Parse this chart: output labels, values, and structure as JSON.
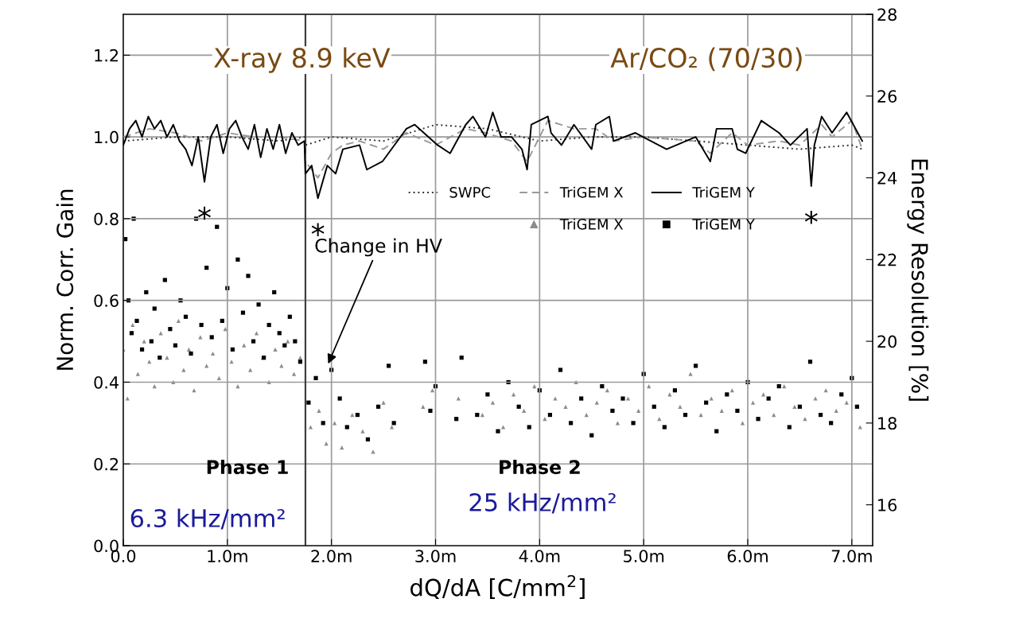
{
  "chart_data": {
    "type": "line",
    "xlabel": "dQ/dA [C/mm$^{2}$]",
    "ylabel": "Norm. Corr. Gain",
    "y2label": "Energy Resolution [%]",
    "xlim": [
      0,
      7.2
    ],
    "xticks": [
      {
        "value": 0,
        "label": "0.0"
      },
      {
        "value": 1,
        "label": "1.0m"
      },
      {
        "value": 2,
        "label": "2.0m"
      },
      {
        "value": 3,
        "label": "3.0m"
      },
      {
        "value": 4,
        "label": "4.0m"
      },
      {
        "value": 5,
        "label": "5.0m"
      },
      {
        "value": 6,
        "label": "6.0m"
      },
      {
        "value": 7,
        "label": "7.0m"
      }
    ],
    "ylim": [
      0,
      1.3
    ],
    "yticks": [
      {
        "value": 0,
        "label": "0.0"
      },
      0.2,
      0.4,
      0.6,
      0.8,
      {
        "value": 1,
        "label": "1.0"
      },
      1.2
    ],
    "y2lim": [
      15,
      28
    ],
    "y2ticks": [
      16,
      18,
      20,
      22,
      24,
      26,
      28
    ],
    "grid": true,
    "legend": "center right",
    "ref_lines": [
      {
        "axis": "x",
        "value": 1.75,
        "color": "#404040",
        "line_style": "solid"
      }
    ],
    "annotations": [
      "X-ray 8.9 keV",
      "Ar/CO₂ (70/30)",
      "Phase 1",
      "Phase 2",
      "6.3 kHz/mm²",
      "25 kHz/mm²",
      {
        "text": "*",
        "x": 0.78,
        "y": 0.89
      },
      {
        "text": "*",
        "x": 1.87,
        "y": 0.85
      },
      {
        "text": "*",
        "x": 6.61,
        "y": 0.88
      },
      {
        "text": "Change in HV",
        "x": 1.96,
        "y": 0.44
      }
    ],
    "series": [
      {
        "name": "SWPC",
        "color": "#303030",
        "line_style": "dotted",
        "x": [
          0,
          0.5,
          1.0,
          1.5,
          1.74,
          1.75,
          2.0,
          2.5,
          3.0,
          3.5,
          4.0,
          4.5,
          5.0,
          5.5,
          6.0,
          6.5,
          7.0,
          7.1
        ],
        "values": [
          0.99,
          1.0,
          1.0,
          0.99,
          1.0,
          0.98,
          1.0,
          0.99,
          1.03,
          1.02,
          0.99,
          1.0,
          1.0,
          0.99,
          0.98,
          0.97,
          0.98,
          0.97
        ]
      },
      {
        "name": "TriGEM X",
        "color": "#9a9a9a",
        "line_style": "dashed",
        "x": [
          0,
          0.25,
          0.5,
          0.75,
          1.0,
          1.25,
          1.5,
          1.74,
          1.75,
          1.87,
          2.0,
          2.11,
          2.27,
          2.5,
          2.72,
          3.0,
          3.29,
          3.48,
          3.73,
          3.88,
          4.08,
          4.33,
          4.54,
          4.71,
          5.0,
          5.5,
          5.64,
          5.85,
          6.0,
          6.3,
          6.5,
          6.71,
          6.81,
          7.0,
          7.1
        ],
        "values": [
          1.0,
          1.02,
          1.01,
          0.99,
          1.01,
          1.0,
          1.0,
          0.99,
          0.94,
          0.9,
          0.96,
          0.98,
          0.99,
          0.97,
          1.01,
          0.98,
          1.02,
          1.01,
          0.99,
          0.94,
          1.04,
          1.02,
          1.02,
          0.99,
          1.0,
          0.99,
          0.96,
          1.01,
          0.98,
          0.99,
          0.98,
          1.03,
          1.0,
          1.04,
          0.97
        ]
      },
      {
        "name": "TriGEM Y",
        "color": "#000000",
        "line_style": "solid",
        "x": [
          0,
          0.06,
          0.12,
          0.18,
          0.24,
          0.3,
          0.36,
          0.42,
          0.48,
          0.54,
          0.6,
          0.66,
          0.72,
          0.78,
          0.84,
          0.9,
          0.96,
          1.02,
          1.08,
          1.14,
          1.2,
          1.26,
          1.32,
          1.38,
          1.44,
          1.5,
          1.56,
          1.62,
          1.68,
          1.74,
          1.75,
          1.81,
          1.87,
          1.96,
          2.04,
          2.11,
          2.27,
          2.34,
          2.49,
          2.72,
          2.8,
          3.02,
          3.14,
          3.29,
          3.36,
          3.48,
          3.55,
          3.63,
          3.73,
          3.83,
          3.88,
          3.92,
          4.08,
          4.11,
          4.21,
          4.33,
          4.5,
          4.54,
          4.67,
          4.71,
          4.92,
          5.22,
          5.5,
          5.64,
          5.7,
          5.85,
          5.9,
          5.98,
          6.13,
          6.3,
          6.41,
          6.57,
          6.61,
          6.64,
          6.71,
          6.81,
          6.95,
          7.1
        ],
        "values": [
          0.98,
          1.02,
          1.04,
          1.0,
          1.05,
          1.02,
          1.04,
          1.0,
          1.03,
          0.99,
          0.97,
          0.93,
          1.0,
          0.89,
          1.0,
          1.03,
          0.96,
          1.02,
          1.04,
          1.0,
          0.97,
          1.03,
          0.95,
          1.02,
          0.97,
          1.03,
          0.96,
          1.01,
          0.98,
          0.99,
          0.91,
          0.93,
          0.85,
          0.93,
          0.91,
          0.97,
          0.98,
          0.92,
          0.94,
          1.02,
          1.03,
          0.98,
          0.96,
          1.03,
          1.05,
          1.0,
          1.06,
          1.0,
          1.0,
          0.97,
          0.92,
          1.03,
          1.05,
          1.01,
          0.98,
          1.03,
          0.97,
          1.03,
          1.05,
          0.99,
          1.01,
          0.97,
          1.0,
          0.94,
          1.02,
          1.02,
          0.97,
          0.96,
          1.04,
          1.01,
          0.98,
          1.02,
          0.88,
          0.98,
          1.05,
          1.01,
          1.06,
          0.99
        ]
      },
      {
        "name": "TriGEM X",
        "type": "scatter",
        "axis": "y2",
        "marker": "triangle",
        "color": "#8c8c8c",
        "x": [
          0.0,
          0.04,
          0.09,
          0.14,
          0.2,
          0.25,
          0.3,
          0.36,
          0.42,
          0.48,
          0.53,
          0.58,
          0.63,
          0.68,
          0.74,
          0.8,
          0.86,
          0.92,
          0.98,
          1.04,
          1.1,
          1.16,
          1.22,
          1.28,
          1.34,
          1.4,
          1.46,
          1.52,
          1.58,
          1.64,
          1.7,
          1.8,
          1.88,
          1.95,
          2.03,
          2.1,
          2.2,
          2.3,
          2.4,
          2.5,
          2.58,
          2.88,
          2.97,
          3.22,
          3.45,
          3.55,
          3.65,
          3.75,
          3.85,
          3.95,
          4.05,
          4.15,
          4.25,
          4.35,
          4.45,
          4.55,
          4.65,
          4.75,
          4.85,
          4.95,
          5.05,
          5.15,
          5.25,
          5.35,
          5.45,
          5.55,
          5.65,
          5.75,
          5.85,
          5.95,
          6.05,
          6.15,
          6.25,
          6.35,
          6.45,
          6.55,
          6.65,
          6.75,
          6.85,
          6.95,
          7.08
        ],
        "values": [
          19.8,
          18.6,
          20.4,
          19.2,
          20.0,
          19.5,
          18.9,
          20.2,
          19.6,
          19.0,
          20.5,
          19.3,
          19.8,
          18.8,
          20.1,
          19.4,
          19.7,
          19.1,
          20.3,
          19.5,
          18.9,
          19.9,
          19.3,
          20.2,
          19.6,
          19.0,
          19.8,
          19.4,
          20.0,
          19.2,
          19.6,
          17.9,
          18.3,
          17.5,
          18.0,
          17.4,
          18.2,
          17.8,
          17.3,
          18.5,
          17.9,
          18.4,
          18.8,
          18.6,
          18.2,
          18.5,
          17.9,
          18.7,
          18.3,
          18.9,
          18.1,
          18.6,
          18.4,
          19.0,
          18.2,
          18.5,
          18.8,
          18.0,
          18.6,
          18.3,
          18.9,
          18.1,
          18.7,
          18.4,
          19.2,
          18.2,
          18.6,
          18.3,
          18.8,
          18.0,
          18.5,
          18.7,
          18.2,
          18.9,
          18.4,
          18.1,
          18.6,
          18.8,
          18.3,
          18.5,
          17.9
        ]
      },
      {
        "name": "TriGEM Y",
        "type": "scatter",
        "axis": "y2",
        "marker": "square",
        "color": "#000000",
        "x": [
          0.02,
          0.05,
          0.08,
          0.1,
          0.13,
          0.18,
          0.22,
          0.27,
          0.3,
          0.35,
          0.4,
          0.45,
          0.5,
          0.55,
          0.6,
          0.65,
          0.7,
          0.75,
          0.8,
          0.85,
          0.9,
          0.95,
          1.0,
          1.05,
          1.1,
          1.15,
          1.2,
          1.25,
          1.3,
          1.35,
          1.4,
          1.45,
          1.5,
          1.55,
          1.6,
          1.65,
          1.7,
          1.78,
          1.85,
          1.92,
          2.0,
          2.08,
          2.15,
          2.25,
          2.35,
          2.45,
          2.55,
          2.6,
          2.9,
          2.95,
          3.0,
          3.2,
          3.25,
          3.4,
          3.5,
          3.6,
          3.7,
          3.8,
          3.9,
          4.0,
          4.1,
          4.2,
          4.3,
          4.4,
          4.5,
          4.6,
          4.7,
          4.8,
          4.9,
          5.0,
          5.1,
          5.2,
          5.3,
          5.4,
          5.5,
          5.6,
          5.7,
          5.8,
          5.9,
          6.0,
          6.1,
          6.2,
          6.3,
          6.4,
          6.5,
          6.6,
          6.7,
          6.8,
          6.9,
          7.0,
          7.05
        ],
        "values": [
          22.5,
          21.0,
          20.2,
          23.0,
          20.5,
          19.8,
          21.2,
          20.0,
          20.8,
          19.6,
          21.5,
          20.3,
          19.9,
          21.0,
          20.6,
          19.7,
          23.0,
          20.4,
          21.8,
          20.1,
          22.8,
          20.5,
          21.3,
          19.8,
          22.0,
          20.7,
          21.6,
          20.0,
          20.9,
          19.6,
          20.4,
          21.2,
          20.2,
          19.9,
          20.6,
          20.0,
          19.5,
          18.5,
          19.1,
          18.0,
          19.3,
          18.6,
          17.9,
          18.2,
          17.6,
          18.4,
          19.4,
          18.0,
          19.5,
          18.3,
          18.9,
          18.1,
          19.6,
          18.2,
          18.7,
          17.8,
          19.0,
          18.4,
          17.9,
          18.8,
          18.2,
          19.3,
          18.0,
          18.6,
          17.7,
          18.9,
          18.3,
          18.6,
          18.0,
          19.2,
          18.4,
          17.9,
          18.8,
          18.2,
          19.4,
          18.5,
          17.8,
          18.7,
          18.3,
          19.0,
          18.1,
          18.6,
          18.9,
          17.9,
          18.4,
          19.5,
          18.2,
          18.0,
          18.7,
          19.1,
          18.4
        ]
      }
    ]
  }
}
